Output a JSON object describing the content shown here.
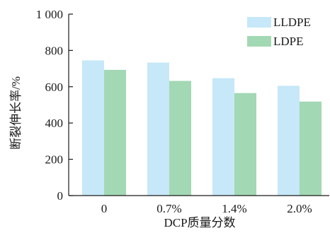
{
  "chart_data": {
    "type": "bar",
    "title": "",
    "xlabel": "DCP质量分数",
    "ylabel": "断裂伸长率/%",
    "categories": [
      "0",
      "0.7%",
      "1.4%",
      "2.0%"
    ],
    "ylim": [
      0,
      1000
    ],
    "yticks": [
      0,
      200,
      400,
      600,
      800,
      1000
    ],
    "ytick_labels": [
      "0",
      "200",
      "400",
      "600",
      "800",
      "1 000"
    ],
    "grid": false,
    "legend_position": "top-right",
    "series": [
      {
        "name": "LLDPE",
        "color": "#c6e8f8",
        "values": [
          745,
          733,
          647,
          605
        ]
      },
      {
        "name": "LDPE",
        "color": "#a3d8b4",
        "values": [
          693,
          632,
          565,
          518
        ]
      }
    ]
  }
}
